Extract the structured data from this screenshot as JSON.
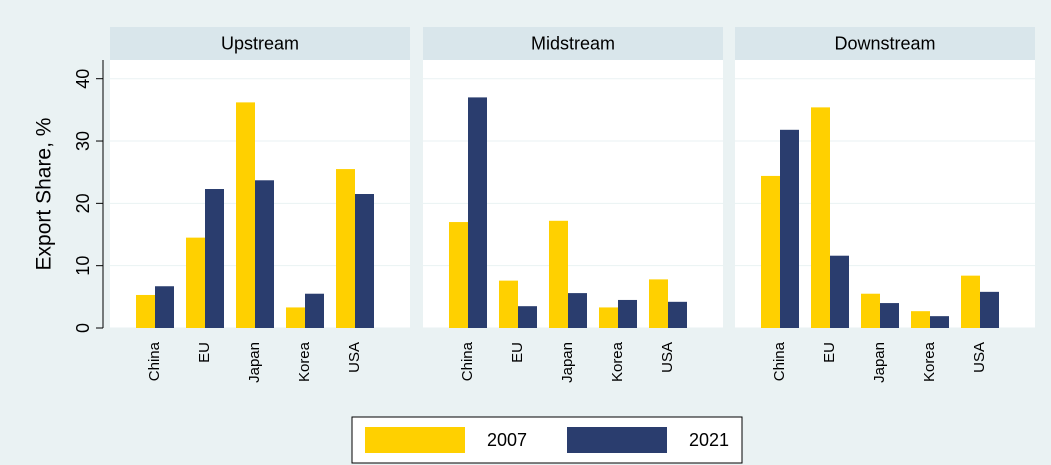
{
  "chart_data": [
    {
      "type": "bar",
      "title": "Upstream",
      "ylabel": "Export Share, %",
      "categories": [
        "China",
        "EU",
        "Japan",
        "Korea",
        "USA"
      ],
      "series": [
        {
          "name": "2007",
          "color": "#ffd000",
          "values": [
            5.3,
            14.5,
            36.2,
            3.3,
            25.5
          ]
        },
        {
          "name": "2021",
          "color": "#2a3d6e",
          "values": [
            6.7,
            22.3,
            23.7,
            5.5,
            21.5
          ]
        }
      ],
      "ylim": [
        0,
        43
      ],
      "yticks": [
        0,
        10,
        20,
        30,
        40
      ],
      "grid": true,
      "legend": "bottom"
    },
    {
      "type": "bar",
      "title": "Midstream",
      "categories": [
        "China",
        "EU",
        "Japan",
        "Korea",
        "USA"
      ],
      "series": [
        {
          "name": "2007",
          "color": "#ffd000",
          "values": [
            17.0,
            7.6,
            17.2,
            3.3,
            7.8
          ]
        },
        {
          "name": "2021",
          "color": "#2a3d6e",
          "values": [
            37.0,
            3.5,
            5.6,
            4.5,
            4.2
          ]
        }
      ],
      "ylim": [
        0,
        43
      ],
      "yticks": [
        0,
        10,
        20,
        30,
        40
      ],
      "grid": true
    },
    {
      "type": "bar",
      "title": "Downstream",
      "categories": [
        "China",
        "EU",
        "Japan",
        "Korea",
        "USA"
      ],
      "series": [
        {
          "name": "2007",
          "color": "#ffd000",
          "values": [
            24.4,
            35.4,
            5.5,
            2.7,
            8.4
          ]
        },
        {
          "name": "2021",
          "color": "#2a3d6e",
          "values": [
            31.8,
            11.6,
            4.0,
            1.9,
            5.8
          ]
        }
      ],
      "ylim": [
        0,
        43
      ],
      "yticks": [
        0,
        10,
        20,
        30,
        40
      ],
      "grid": true
    }
  ]
}
